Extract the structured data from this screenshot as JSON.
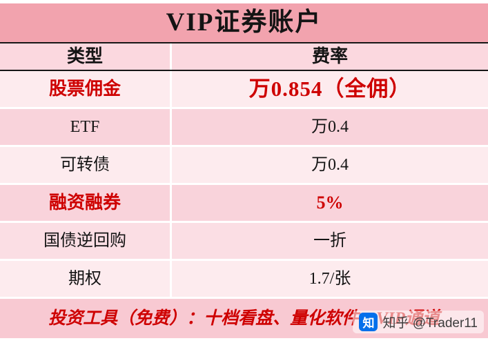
{
  "chart_data": {
    "type": "table",
    "title": "VIP证券账户",
    "columns": [
      "类型",
      "费率"
    ],
    "rows": [
      [
        "股票佣金",
        "万0.854（全佣）"
      ],
      [
        "ETF",
        "万0.4"
      ],
      [
        "可转债",
        "万0.4"
      ],
      [
        "融资融券",
        "5%"
      ],
      [
        "国债逆回购",
        "一折"
      ],
      [
        "期权",
        "1.7/张"
      ]
    ],
    "highlighted_rows": [
      0,
      3
    ],
    "footer_note": "投资工具（免费）：十档看盘、量化软件、VIP通道"
  },
  "watermark": {
    "source_icon": "zhihu-logo",
    "logo_glyph": "知",
    "text": "知乎 @Trader11"
  },
  "colors": {
    "title_bg": "#F2A3AE",
    "header_bg": "#FBD8DF",
    "row_pale_bg": "#FDEBEE",
    "row_medium_bg": "#F9D3DB",
    "footer_bg": "#F8C9D2",
    "accent_red": "#CE0000",
    "zhihu_blue": "#0370EB",
    "divider_black": "#161616"
  }
}
